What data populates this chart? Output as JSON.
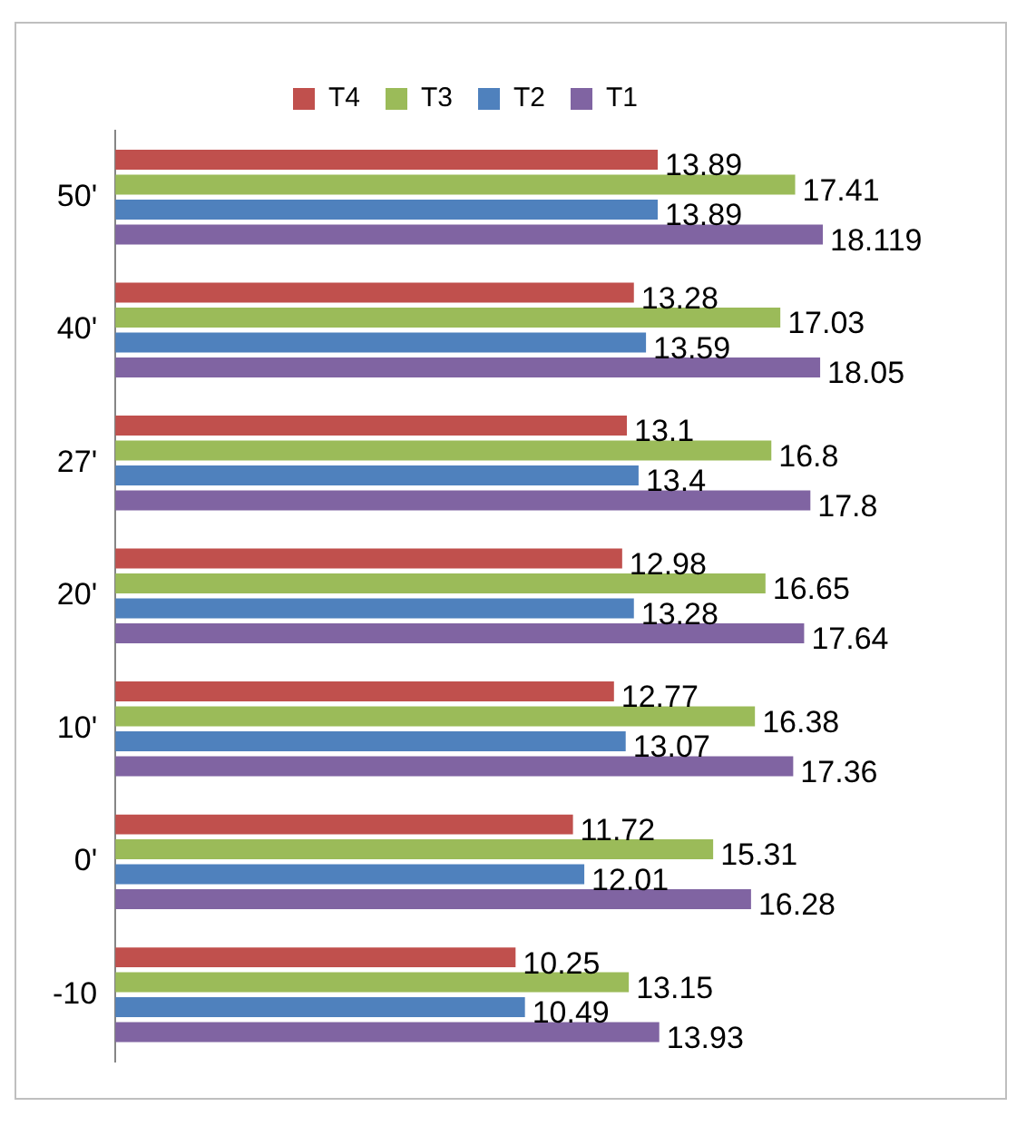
{
  "chart_data": {
    "type": "bar",
    "orientation": "horizontal",
    "categories": [
      "50'",
      "40'",
      "27'",
      "20'",
      "10'",
      "0'",
      "-10"
    ],
    "series": [
      {
        "name": "T4",
        "color": "#c0504d",
        "values": [
          13.89,
          13.28,
          13.1,
          12.98,
          12.77,
          11.72,
          10.25
        ]
      },
      {
        "name": "T3",
        "color": "#9bbb59",
        "values": [
          17.41,
          17.03,
          16.8,
          16.65,
          16.38,
          15.31,
          13.15
        ]
      },
      {
        "name": "T2",
        "color": "#4f81bd",
        "values": [
          13.89,
          13.59,
          13.4,
          13.28,
          13.07,
          12.01,
          10.49
        ]
      },
      {
        "name": "T1",
        "color": "#8064a2",
        "values": [
          18.119,
          18.05,
          17.8,
          17.64,
          17.36,
          16.28,
          13.93
        ]
      }
    ],
    "data_labels": true,
    "legend": "top",
    "tick_labels": "y"
  }
}
